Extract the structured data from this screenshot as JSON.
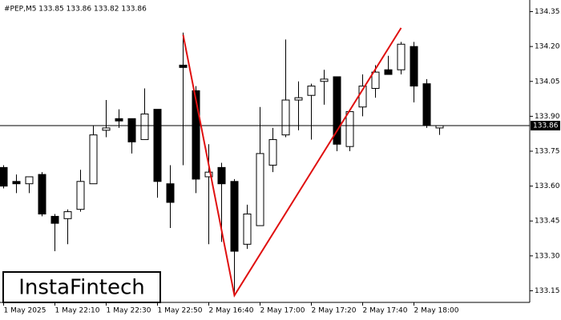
{
  "chart_data": {
    "type": "candlestick",
    "title": "#PEP,M5  133.85 133.86 133.82 133.86",
    "watermark": "InstaFintech",
    "categories": [
      "1 May 2025",
      null,
      null,
      null,
      "1 May 22:10",
      null,
      null,
      null,
      "1 May 22:30",
      null,
      null,
      null,
      "1 May 22:50",
      null,
      null,
      null,
      "2 May 16:40",
      null,
      null,
      null,
      "2 May 17:00",
      null,
      null,
      null,
      "2 May 17:20",
      null,
      null,
      null,
      "2 May 17:40",
      null,
      null,
      null,
      "2 May 18:00",
      null,
      null
    ],
    "open": [
      133.68,
      133.62,
      133.61,
      133.65,
      133.47,
      133.46,
      133.5,
      133.61,
      133.84,
      133.89,
      133.89,
      133.8,
      133.93,
      133.61,
      134.12,
      134.01,
      133.64,
      133.68,
      133.62,
      133.35,
      133.43,
      133.69,
      133.82,
      133.97,
      133.99,
      134.05,
      134.07,
      133.77,
      133.94,
      134.02,
      134.1,
      134.1,
      134.2,
      134.04,
      133.85
    ],
    "high": [
      133.69,
      133.65,
      133.64,
      133.66,
      133.48,
      133.5,
      133.67,
      133.86,
      133.97,
      133.93,
      133.89,
      134.02,
      133.93,
      133.69,
      134.26,
      134.03,
      133.78,
      133.7,
      133.63,
      133.52,
      133.94,
      133.85,
      134.23,
      134.05,
      134.04,
      134.1,
      134.07,
      133.93,
      134.08,
      134.12,
      134.16,
      134.22,
      134.22,
      134.06,
      133.86
    ],
    "low": [
      133.59,
      133.57,
      133.57,
      133.47,
      133.32,
      133.35,
      133.49,
      133.61,
      133.81,
      133.85,
      133.74,
      133.8,
      133.55,
      133.42,
      133.69,
      133.57,
      133.35,
      133.36,
      133.14,
      133.33,
      133.43,
      133.66,
      133.81,
      133.84,
      133.8,
      133.95,
      133.75,
      133.75,
      133.9,
      133.98,
      134.08,
      134.08,
      133.96,
      133.85,
      133.82
    ],
    "close": [
      133.6,
      133.61,
      133.64,
      133.48,
      133.44,
      133.49,
      133.62,
      133.82,
      133.85,
      133.88,
      133.79,
      133.91,
      133.62,
      133.53,
      134.11,
      133.63,
      133.66,
      133.61,
      133.32,
      133.48,
      133.74,
      133.8,
      133.97,
      133.98,
      134.03,
      134.06,
      133.78,
      133.92,
      134.03,
      134.09,
      134.08,
      134.21,
      134.03,
      133.86,
      133.86
    ],
    "up_color": "#ffffff",
    "down_color": "#000000",
    "price_line": 133.86,
    "pattern": {
      "color": "#e01010",
      "points": [
        {
          "x": 14,
          "y": 134.25
        },
        {
          "x": 18,
          "y": 133.13
        },
        {
          "x": 31,
          "y": 134.28
        }
      ]
    },
    "ylim": [
      133.1,
      134.4
    ],
    "yticks": [
      134.35,
      {
        "value": 134.2,
        "label": "134.20"
      },
      134.05,
      {
        "value": 133.9,
        "label": "133.90"
      },
      133.75,
      {
        "value": 133.6,
        "label": "133.60"
      },
      133.45,
      {
        "value": 133.3,
        "label": "133.30"
      },
      133.15
    ]
  }
}
